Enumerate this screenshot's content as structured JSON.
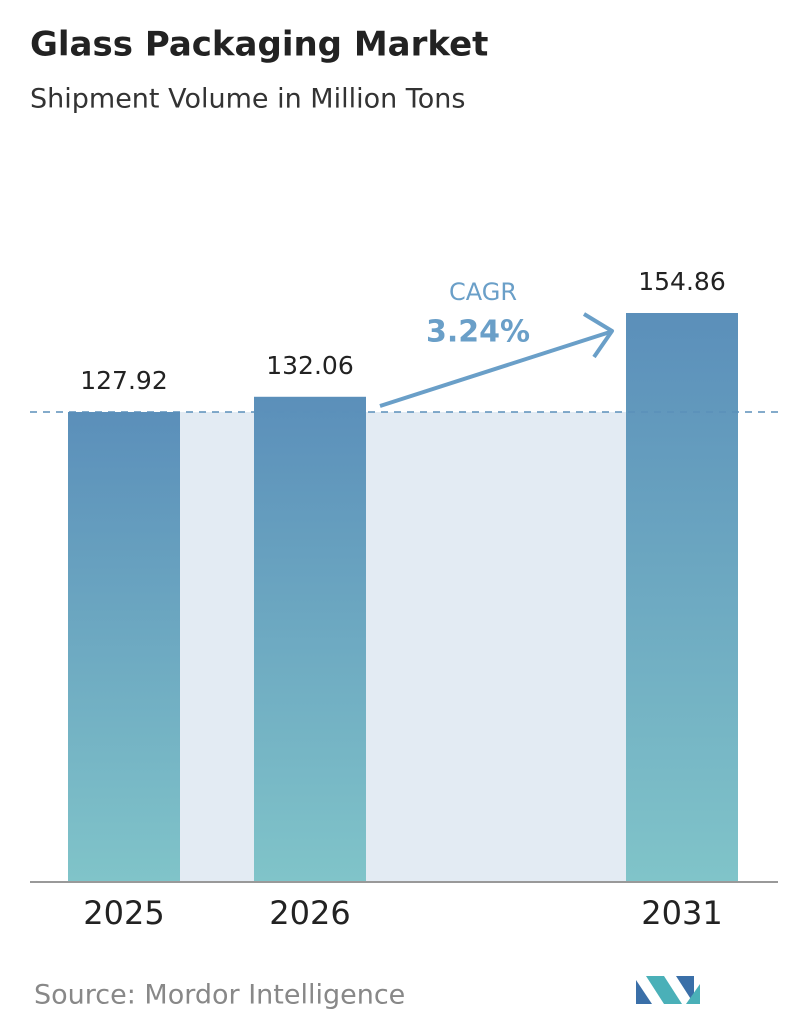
{
  "chart_data": {
    "type": "bar",
    "title": "Glass Packaging Market",
    "subtitle": "Shipment Volume in Million Tons",
    "categories": [
      "2025",
      "2026",
      "2031"
    ],
    "values": [
      127.92,
      132.06,
      154.86
    ],
    "annotation_label": "CAGR",
    "annotation_value": "3.24%",
    "source": "Source:  Mordor Intelligence"
  }
}
